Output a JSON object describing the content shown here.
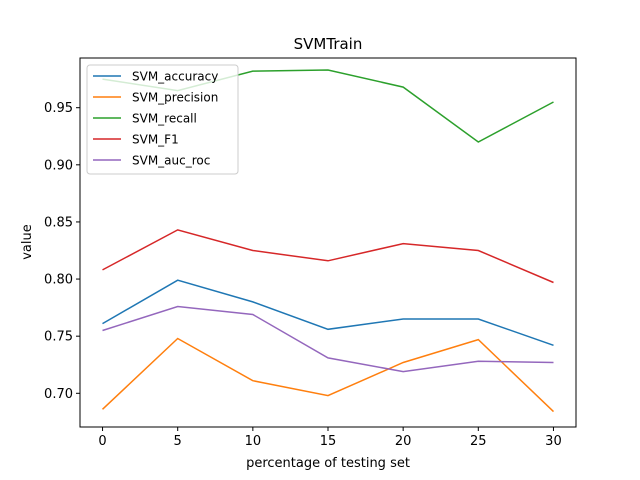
{
  "chart_data": {
    "type": "line",
    "title": "SVMTrain",
    "xlabel": "percentage of testing set",
    "ylabel": "value",
    "x": [
      0,
      5,
      10,
      15,
      20,
      25,
      30
    ],
    "xlim": [
      -1.5,
      31.5
    ],
    "ylim": [
      0.6705,
      0.9935
    ],
    "xticks": [
      0,
      5,
      10,
      15,
      20,
      25,
      30
    ],
    "yticks": [
      0.7,
      0.75,
      0.8,
      0.85,
      0.9,
      0.95
    ],
    "ytick_labels": [
      "0.70",
      "0.75",
      "0.80",
      "0.85",
      "0.90",
      "0.95"
    ],
    "grid": false,
    "legend_position": "top-left",
    "series": [
      {
        "name": "SVM_accuracy",
        "color": "#1f77b4",
        "values": [
          0.761,
          0.799,
          0.78,
          0.756,
          0.765,
          0.765,
          0.742
        ]
      },
      {
        "name": "SVM_precision",
        "color": "#ff7f0e",
        "values": [
          0.686,
          0.748,
          0.711,
          0.698,
          0.727,
          0.747,
          0.684
        ]
      },
      {
        "name": "SVM_recall",
        "color": "#2ca02c",
        "values": [
          0.975,
          0.965,
          0.982,
          0.983,
          0.968,
          0.92,
          0.955
        ]
      },
      {
        "name": "SVM_F1",
        "color": "#d62728",
        "values": [
          0.808,
          0.843,
          0.825,
          0.816,
          0.831,
          0.825,
          0.797
        ]
      },
      {
        "name": "SVM_auc_roc",
        "color": "#9467bd",
        "values": [
          0.755,
          0.776,
          0.769,
          0.731,
          0.719,
          0.728,
          0.727
        ]
      }
    ]
  }
}
